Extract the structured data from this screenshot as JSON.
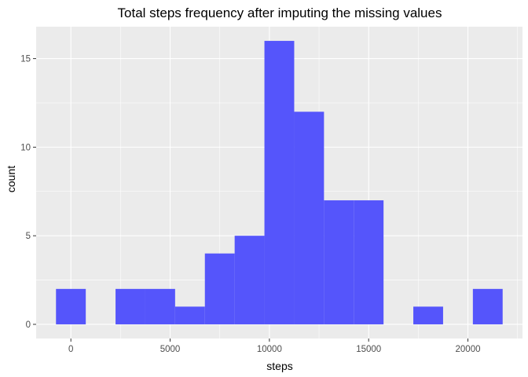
{
  "chart_data": {
    "type": "bar",
    "title": "Total steps frequency after imputing the missing values",
    "xlabel": "steps",
    "ylabel": "count",
    "bin_width": 1500,
    "bins": [
      {
        "x_center": 0,
        "count": 2
      },
      {
        "x_center": 1500,
        "count": 0
      },
      {
        "x_center": 3000,
        "count": 2
      },
      {
        "x_center": 4500,
        "count": 2
      },
      {
        "x_center": 6000,
        "count": 1
      },
      {
        "x_center": 7500,
        "count": 4
      },
      {
        "x_center": 9000,
        "count": 5
      },
      {
        "x_center": 10500,
        "count": 16
      },
      {
        "x_center": 12000,
        "count": 12
      },
      {
        "x_center": 13500,
        "count": 7
      },
      {
        "x_center": 15000,
        "count": 7
      },
      {
        "x_center": 16500,
        "count": 0
      },
      {
        "x_center": 18000,
        "count": 1
      },
      {
        "x_center": 19500,
        "count": 0
      },
      {
        "x_center": 21000,
        "count": 2
      }
    ],
    "xlim": [
      -1750,
      22750
    ],
    "ylim": [
      -0.8,
      16.8
    ],
    "x_ticks": [
      0,
      5000,
      10000,
      15000,
      20000
    ],
    "x_tick_labels": [
      "0",
      "5000",
      "10000",
      "15000",
      "20000"
    ],
    "y_ticks": [
      0,
      5,
      10,
      15
    ],
    "y_tick_labels": [
      "0",
      "5",
      "10",
      "15"
    ],
    "grid": true,
    "colors": {
      "bar": "#5555fb",
      "panel": "#ebebeb",
      "grid_major": "#ffffff",
      "tick": "#333333"
    }
  }
}
